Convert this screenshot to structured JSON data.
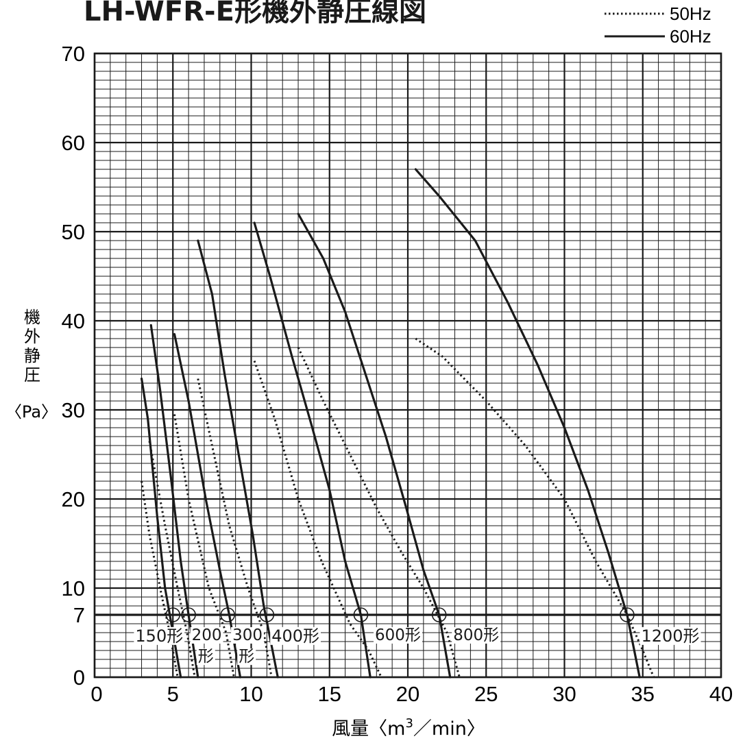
{
  "chart_data": {
    "type": "line",
    "title": "LH-WFR-E形機外静圧線図",
    "xlabel": "風量〈m³／min〉",
    "xlabel_parts": {
      "main": "風量〈m",
      "sup": "3",
      "tail": "／min〉"
    },
    "ylabel_chars": [
      "機",
      "外",
      "静",
      "圧"
    ],
    "ylabel_unit": "〈Pa〉",
    "xlim": [
      0,
      40
    ],
    "ylim": [
      0,
      70
    ],
    "x_ticks": [
      "0",
      "5",
      "10",
      "15",
      "20",
      "25",
      "30",
      "35",
      "40"
    ],
    "y_ticks": [
      "0",
      "7",
      "10",
      "20",
      "30",
      "40",
      "50",
      "60",
      "70"
    ],
    "grid": true,
    "legend_position": "top-right",
    "legend": [
      {
        "label": "50Hz",
        "style": "dotted"
      },
      {
        "label": "60Hz",
        "style": "solid"
      }
    ],
    "reference_line": {
      "y": 7
    },
    "series": [
      {
        "model": "150形",
        "freq": "50Hz",
        "points": [
          [
            3.0,
            22
          ],
          [
            3.5,
            16
          ],
          [
            4.3,
            9
          ],
          [
            4.8,
            5
          ],
          [
            5.3,
            0
          ]
        ]
      },
      {
        "model": "150形",
        "freq": "60Hz",
        "points": [
          [
            3.0,
            33.5
          ],
          [
            3.4,
            29
          ],
          [
            4.0,
            18
          ],
          [
            4.5,
            10
          ],
          [
            5.0,
            5
          ],
          [
            5.5,
            0
          ]
        ]
      },
      {
        "model": "200形",
        "freq": "50Hz",
        "points": [
          [
            3.5,
            26.5
          ],
          [
            4.5,
            17
          ],
          [
            5.3,
            10
          ],
          [
            5.9,
            5
          ],
          [
            6.4,
            0
          ]
        ]
      },
      {
        "model": "200形",
        "freq": "60Hz",
        "points": [
          [
            3.6,
            39.5
          ],
          [
            4.2,
            32
          ],
          [
            4.9,
            22
          ],
          [
            5.5,
            13
          ],
          [
            6.0,
            7
          ],
          [
            6.6,
            0
          ]
        ]
      },
      {
        "model": "300形",
        "freq": "50Hz",
        "points": [
          [
            5.1,
            29.5
          ],
          [
            6.0,
            20
          ],
          [
            7.3,
            10
          ],
          [
            8.4,
            5
          ],
          [
            8.9,
            0
          ]
        ]
      },
      {
        "model": "300形",
        "freq": "60Hz",
        "points": [
          [
            5.1,
            38.5
          ],
          [
            6.0,
            31
          ],
          [
            7.1,
            20
          ],
          [
            8.0,
            12
          ],
          [
            8.6,
            7
          ],
          [
            9.3,
            0
          ]
        ]
      },
      {
        "model": "400形",
        "freq": "50Hz",
        "points": [
          [
            6.6,
            33.5
          ],
          [
            7.5,
            26
          ],
          [
            8.6,
            17
          ],
          [
            9.8,
            10
          ],
          [
            10.8,
            5
          ],
          [
            11.3,
            0
          ]
        ]
      },
      {
        "model": "400形",
        "freq": "60Hz",
        "points": [
          [
            6.6,
            49
          ],
          [
            7.5,
            43
          ],
          [
            8.3,
            34
          ],
          [
            9.2,
            25
          ],
          [
            10.1,
            16
          ],
          [
            10.8,
            8
          ],
          [
            11.7,
            0
          ]
        ]
      },
      {
        "model": "600形",
        "freq": "50Hz",
        "points": [
          [
            10.2,
            35.5
          ],
          [
            11.5,
            29
          ],
          [
            13.0,
            20
          ],
          [
            14.5,
            13
          ],
          [
            16.3,
            6
          ],
          [
            17.5,
            3
          ],
          [
            18.3,
            0
          ]
        ]
      },
      {
        "model": "600形",
        "freq": "60Hz",
        "points": [
          [
            10.2,
            51
          ],
          [
            11.2,
            45
          ],
          [
            12.6,
            36
          ],
          [
            13.9,
            28
          ],
          [
            15.0,
            21
          ],
          [
            16.0,
            13
          ],
          [
            17.0,
            7
          ],
          [
            17.6,
            0
          ]
        ]
      },
      {
        "model": "800形",
        "freq": "50Hz",
        "points": [
          [
            13.0,
            37
          ],
          [
            14.6,
            31
          ],
          [
            16.3,
            25
          ],
          [
            18.0,
            19
          ],
          [
            19.6,
            14
          ],
          [
            21.0,
            10
          ],
          [
            22.5,
            5
          ],
          [
            23.3,
            0
          ]
        ]
      },
      {
        "model": "800形",
        "freq": "60Hz",
        "points": [
          [
            13.0,
            52
          ],
          [
            14.6,
            47
          ],
          [
            16.0,
            41
          ],
          [
            17.3,
            34
          ],
          [
            18.6,
            27
          ],
          [
            19.9,
            19
          ],
          [
            21.0,
            12
          ],
          [
            22.0,
            7
          ],
          [
            22.7,
            0
          ]
        ]
      },
      {
        "model": "1200形",
        "freq": "50Hz",
        "points": [
          [
            20.5,
            38
          ],
          [
            22.2,
            36
          ],
          [
            25.0,
            31
          ],
          [
            27.5,
            26
          ],
          [
            30.0,
            20
          ],
          [
            32.0,
            13
          ],
          [
            34.0,
            7
          ],
          [
            35.0,
            3
          ],
          [
            35.7,
            0
          ]
        ]
      },
      {
        "model": "1200形",
        "freq": "60Hz",
        "points": [
          [
            20.5,
            57
          ],
          [
            22.0,
            54
          ],
          [
            24.3,
            49
          ],
          [
            26.4,
            42
          ],
          [
            28.3,
            35
          ],
          [
            30.0,
            28
          ],
          [
            31.5,
            21
          ],
          [
            32.8,
            14
          ],
          [
            34.0,
            7
          ],
          [
            34.8,
            0
          ]
        ]
      }
    ],
    "markers": [
      {
        "model": "150形",
        "x": 5.0,
        "y": 7
      },
      {
        "model": "200形",
        "x": 6.0,
        "y": 7
      },
      {
        "model": "300形",
        "x": 8.5,
        "y": 7
      },
      {
        "model": "400形",
        "x": 11.0,
        "y": 7
      },
      {
        "model": "600形",
        "x": 17.0,
        "y": 7
      },
      {
        "model": "800形",
        "x": 22.0,
        "y": 7
      },
      {
        "model": "1200形",
        "x": 34.0,
        "y": 7
      }
    ],
    "model_labels": [
      {
        "text": "150形",
        "x": 2.6,
        "y": 4.8,
        "size": "big"
      },
      {
        "text": "200",
        "x": 6.2,
        "y": 4.8,
        "size": "small"
      },
      {
        "text": "形",
        "x": 6.6,
        "y": 2.4,
        "size": "small"
      },
      {
        "text": "300",
        "x": 8.8,
        "y": 4.8,
        "size": "small"
      },
      {
        "text": "形",
        "x": 9.2,
        "y": 2.4,
        "size": "small"
      },
      {
        "text": "400形",
        "x": 11.3,
        "y": 4.8,
        "size": "big"
      },
      {
        "text": "600形",
        "x": 17.9,
        "y": 4.8,
        "size": "small"
      },
      {
        "text": "800形",
        "x": 22.9,
        "y": 4.8,
        "size": "small"
      },
      {
        "text": "1200形",
        "x": 34.9,
        "y": 4.8,
        "size": "big"
      }
    ]
  }
}
